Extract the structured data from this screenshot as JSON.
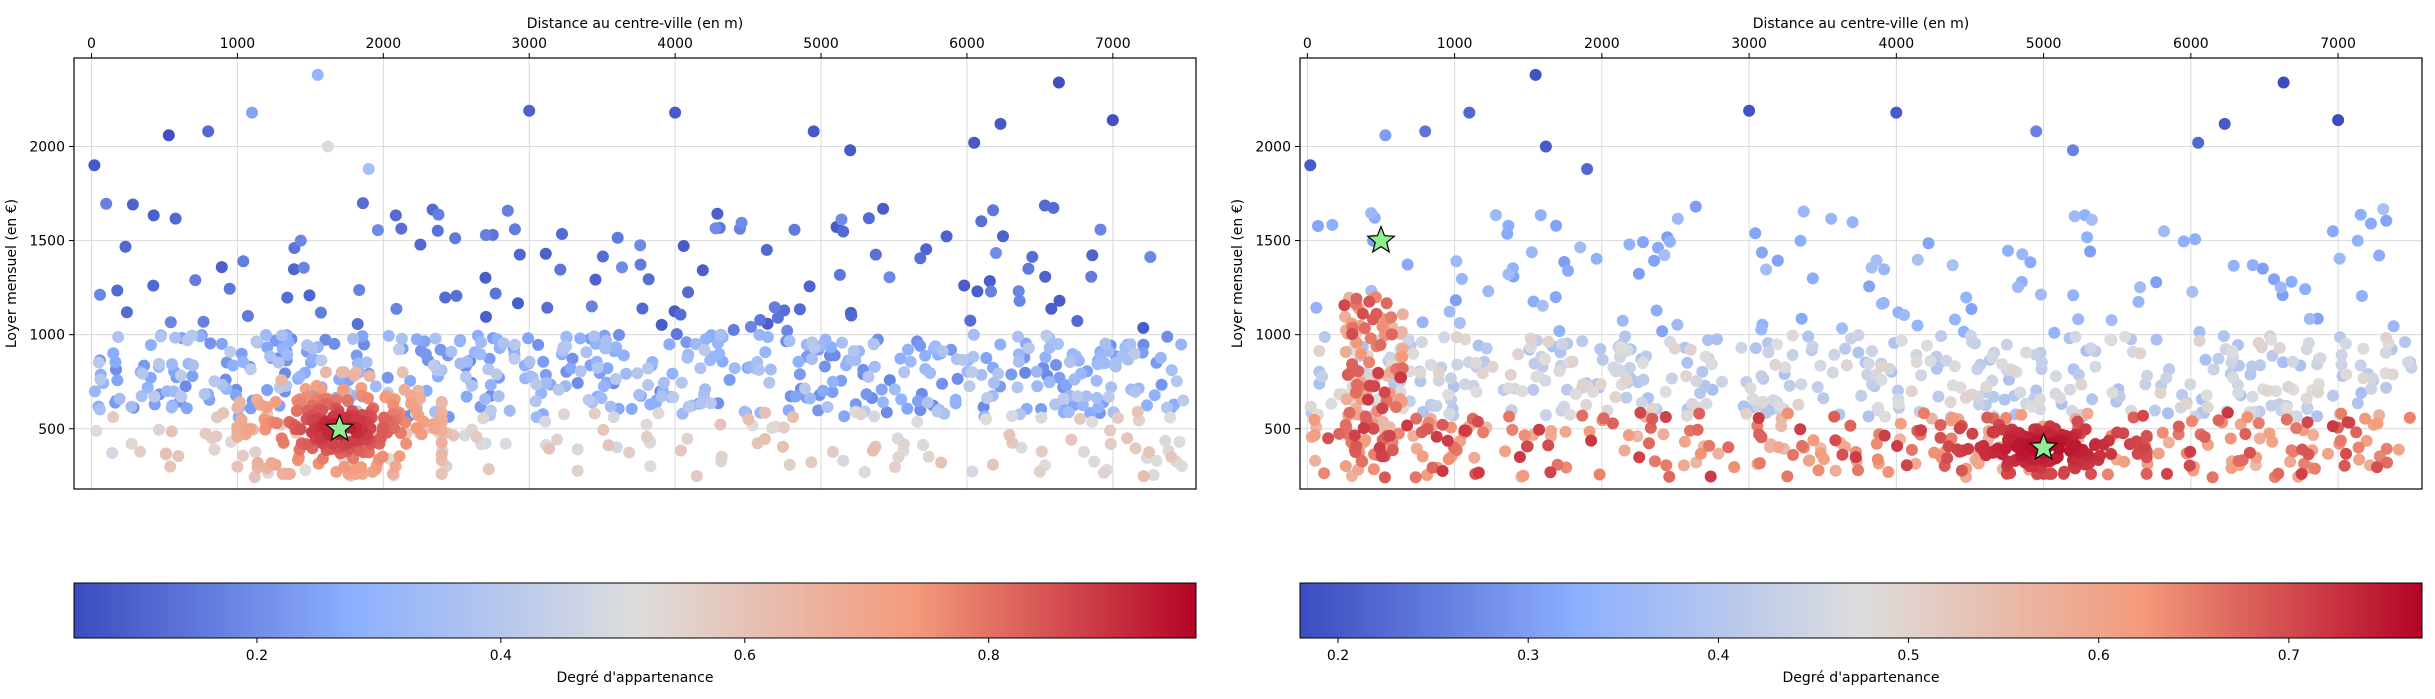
{
  "chart_data": [
    {
      "type": "scatter",
      "title": "",
      "xlabel": "Distance au centre-ville (en m)",
      "xlabel_position": "top",
      "ylabel": "Loyer mensuel (en €)",
      "xlim": [
        -120,
        7570
      ],
      "ylim": [
        180,
        2470
      ],
      "xticks": [
        0,
        1000,
        2000,
        3000,
        4000,
        5000,
        6000,
        7000
      ],
      "yticks": [
        500,
        1000,
        1500,
        2000
      ],
      "grid": true,
      "colormap": "coolwarm",
      "colormap_colors": [
        "#3b4cc0",
        "#8db0fe",
        "#dddddd",
        "#f49a7b",
        "#b40426"
      ],
      "marker_color": "#90ee90",
      "center": {
        "x": 1700,
        "y": 500,
        "marker": "star"
      },
      "colorbar": {
        "label": "Degré d'appartenance",
        "min": 0.05,
        "max": 0.97,
        "ticks": [
          0.2,
          0.4,
          0.6,
          0.8
        ]
      },
      "clusters": [
        {
          "x_range": [
            0,
            7500
          ],
          "y_range": [
            240,
            590
          ],
          "n": 150,
          "color_range": [
            0.48,
            0.62
          ]
        },
        {
          "x_range": [
            1000,
            2400
          ],
          "y_range": [
            260,
            800
          ],
          "n": 220,
          "color_range": [
            0.6,
            0.96
          ],
          "peak": {
            "x": 1700,
            "y": 500
          }
        },
        {
          "x_range": [
            0,
            7500
          ],
          "y_range": [
            560,
            1000
          ],
          "n": 520,
          "color_range": [
            0.18,
            0.42
          ]
        },
        {
          "x_range": [
            0,
            7400
          ],
          "y_range": [
            1000,
            1700
          ],
          "n": 120,
          "color_range": [
            0.08,
            0.2
          ]
        }
      ],
      "highlighted_points": [
        {
          "x": 20,
          "y": 1900,
          "c": 0.08
        },
        {
          "x": 1550,
          "y": 2380,
          "c": 0.3
        },
        {
          "x": 6630,
          "y": 2340,
          "c": 0.06
        },
        {
          "x": 4000,
          "y": 2180,
          "c": 0.08
        },
        {
          "x": 3000,
          "y": 2190,
          "c": 0.1
        },
        {
          "x": 7000,
          "y": 2140,
          "c": 0.06
        },
        {
          "x": 6230,
          "y": 2120,
          "c": 0.08
        },
        {
          "x": 1100,
          "y": 2180,
          "c": 0.25
        },
        {
          "x": 4950,
          "y": 2080,
          "c": 0.08
        },
        {
          "x": 6050,
          "y": 2020,
          "c": 0.08
        },
        {
          "x": 1620,
          "y": 2000,
          "c": 0.5
        },
        {
          "x": 5200,
          "y": 1980,
          "c": 0.08
        },
        {
          "x": 530,
          "y": 2060,
          "c": 0.06
        },
        {
          "x": 800,
          "y": 2080,
          "c": 0.12
        },
        {
          "x": 1900,
          "y": 1880,
          "c": 0.35
        }
      ]
    },
    {
      "type": "scatter",
      "title": "",
      "xlabel": "Distance au centre-ville (en m)",
      "xlabel_position": "top",
      "ylabel": "Loyer mensuel (en €)",
      "xlim": [
        -50,
        7570
      ],
      "ylim": [
        180,
        2470
      ],
      "xticks": [
        0,
        1000,
        2000,
        3000,
        4000,
        5000,
        6000,
        7000
      ],
      "yticks": [
        500,
        1000,
        1500,
        2000
      ],
      "grid": true,
      "colormap": "coolwarm",
      "colormap_colors": [
        "#3b4cc0",
        "#8db0fe",
        "#dddddd",
        "#f49a7b",
        "#b40426"
      ],
      "marker_color": "#90ee90",
      "centers": [
        {
          "x": 500,
          "y": 1500,
          "marker": "star"
        },
        {
          "x": 5000,
          "y": 400,
          "marker": "star"
        }
      ],
      "colorbar": {
        "label": "Degré d'appartenance",
        "min": 0.18,
        "max": 0.77,
        "ticks": [
          0.2,
          0.3,
          0.4,
          0.5,
          0.6,
          0.7
        ]
      },
      "clusters": [
        {
          "x_range": [
            0,
            7500
          ],
          "y_range": [
            240,
            590
          ],
          "n": 300,
          "color_range": [
            0.55,
            0.72
          ]
        },
        {
          "x_range": [
            4300,
            5700
          ],
          "y_range": [
            260,
            560
          ],
          "n": 130,
          "color_range": [
            0.68,
            0.77
          ],
          "peak": {
            "x": 5000,
            "y": 400
          }
        },
        {
          "x_range": [
            250,
            650
          ],
          "y_range": [
            260,
            1200
          ],
          "n": 110,
          "color_range": [
            0.55,
            0.72
          ]
        },
        {
          "x_range": [
            0,
            7500
          ],
          "y_range": [
            560,
            1000
          ],
          "n": 450,
          "color_range": [
            0.38,
            0.5
          ]
        },
        {
          "x_range": [
            0,
            7400
          ],
          "y_range": [
            1000,
            1700
          ],
          "n": 120,
          "color_range": [
            0.3,
            0.38
          ]
        }
      ],
      "highlighted_points": [
        {
          "x": 20,
          "y": 1900,
          "c": 0.2
        },
        {
          "x": 1550,
          "y": 2380,
          "c": 0.19
        },
        {
          "x": 6630,
          "y": 2340,
          "c": 0.18
        },
        {
          "x": 4000,
          "y": 2180,
          "c": 0.2
        },
        {
          "x": 3000,
          "y": 2190,
          "c": 0.19
        },
        {
          "x": 7000,
          "y": 2140,
          "c": 0.18
        },
        {
          "x": 6230,
          "y": 2120,
          "c": 0.2
        },
        {
          "x": 1100,
          "y": 2180,
          "c": 0.22
        },
        {
          "x": 4950,
          "y": 2080,
          "c": 0.26
        },
        {
          "x": 6050,
          "y": 2020,
          "c": 0.22
        },
        {
          "x": 1620,
          "y": 2000,
          "c": 0.2
        },
        {
          "x": 5200,
          "y": 1980,
          "c": 0.26
        },
        {
          "x": 530,
          "y": 2060,
          "c": 0.3
        },
        {
          "x": 800,
          "y": 2080,
          "c": 0.24
        },
        {
          "x": 1900,
          "y": 1880,
          "c": 0.22
        }
      ]
    }
  ]
}
